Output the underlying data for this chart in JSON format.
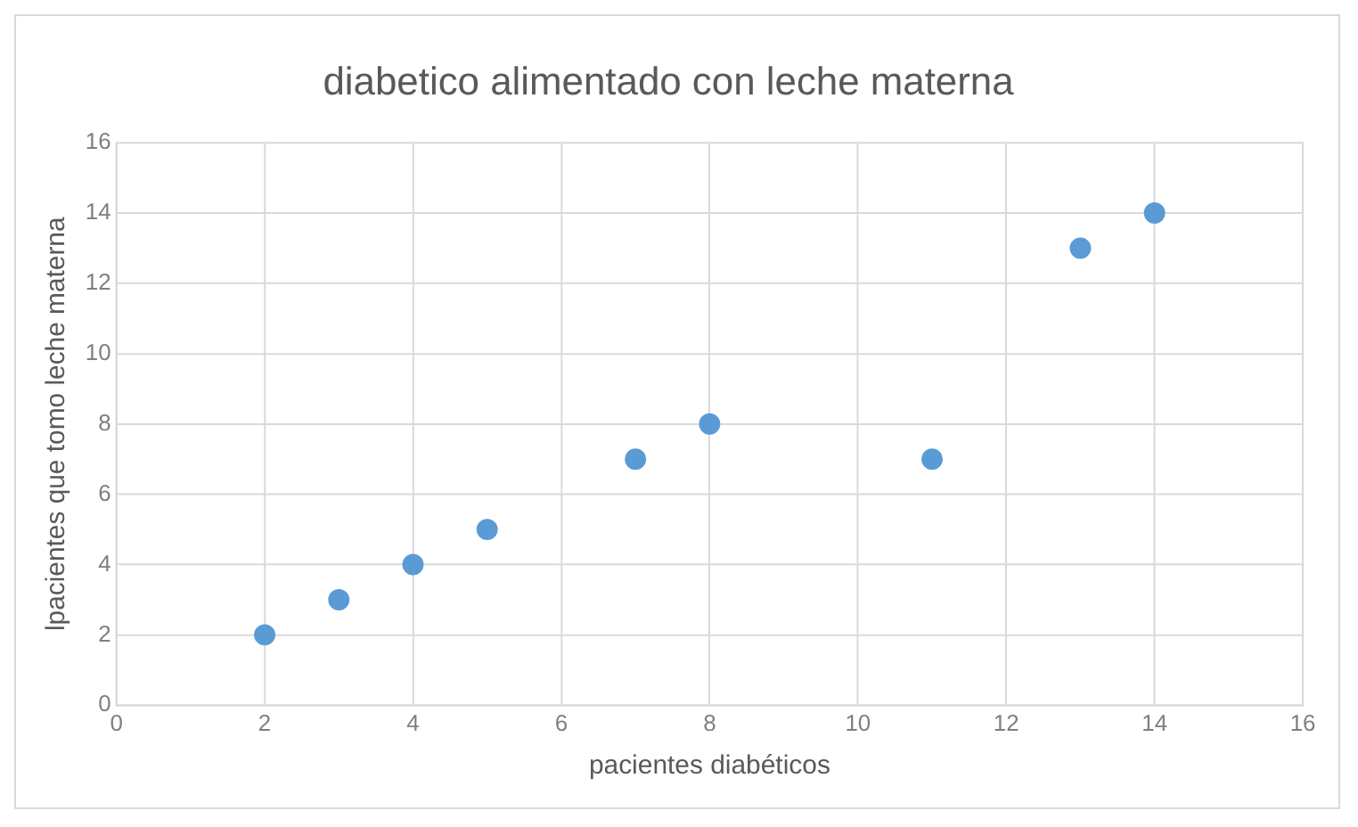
{
  "chart_data": {
    "type": "scatter",
    "title": "diabetico alimentado con leche materna",
    "xlabel": "pacientes diabéticos",
    "ylabel": "lpacientes que tomo leche materna",
    "x": [
      2,
      3,
      4,
      5,
      7,
      8,
      11,
      13,
      14
    ],
    "series": [
      {
        "color": "#5b9bd5",
        "values": [
          2,
          3,
          4,
          5,
          7,
          8,
          7,
          13,
          14
        ]
      }
    ],
    "xlim": [
      0,
      16
    ],
    "xticks": [
      0,
      2,
      4,
      6,
      8,
      10,
      12,
      14,
      16
    ],
    "ylim": [
      0,
      16
    ],
    "yticks": [
      0,
      2,
      4,
      6,
      8,
      10,
      12,
      14,
      16
    ],
    "grid": true,
    "legend": false,
    "marker": "circle"
  }
}
